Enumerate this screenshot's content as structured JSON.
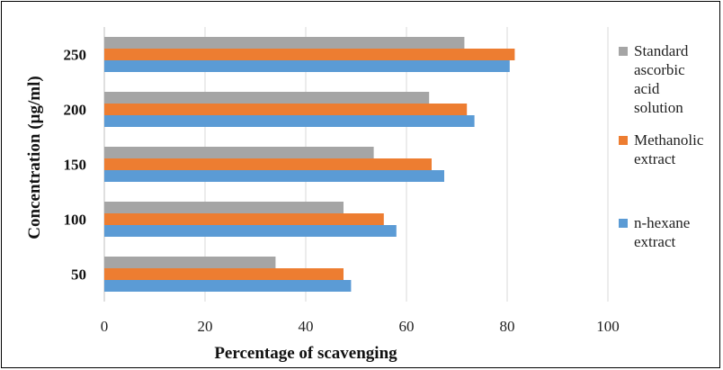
{
  "chart_data": {
    "type": "bar",
    "orientation": "horizontal",
    "title": "",
    "xlabel": "Percentage of scavenging",
    "ylabel": "Concentration (µg/ml)",
    "xlim": [
      0,
      100
    ],
    "xticks": [
      0,
      20,
      40,
      60,
      80,
      100
    ],
    "categories": [
      "50",
      "100",
      "150",
      "200",
      "250"
    ],
    "grid": "vertical",
    "legend_position": "right",
    "series": [
      {
        "name": "n-hexane extract",
        "color": "#5b9bd5",
        "values": [
          49,
          58,
          67.5,
          73.5,
          80.5
        ]
      },
      {
        "name": "Methanolic extract",
        "color": "#ed7d31",
        "values": [
          47.5,
          55.5,
          65,
          72,
          81.5
        ]
      },
      {
        "name": "Standard ascorbic acid solution",
        "color": "#a5a5a5",
        "values": [
          34,
          47.5,
          53.5,
          64.5,
          71.5
        ]
      }
    ],
    "legend": [
      {
        "series": 2,
        "lines": [
          "Standard",
          "ascorbic",
          "acid",
          "solution"
        ]
      },
      {
        "series": 1,
        "lines": [
          "Methanolic",
          "extract"
        ]
      },
      {
        "series": 0,
        "lines": [
          "n-hexane",
          "extract"
        ]
      }
    ]
  }
}
